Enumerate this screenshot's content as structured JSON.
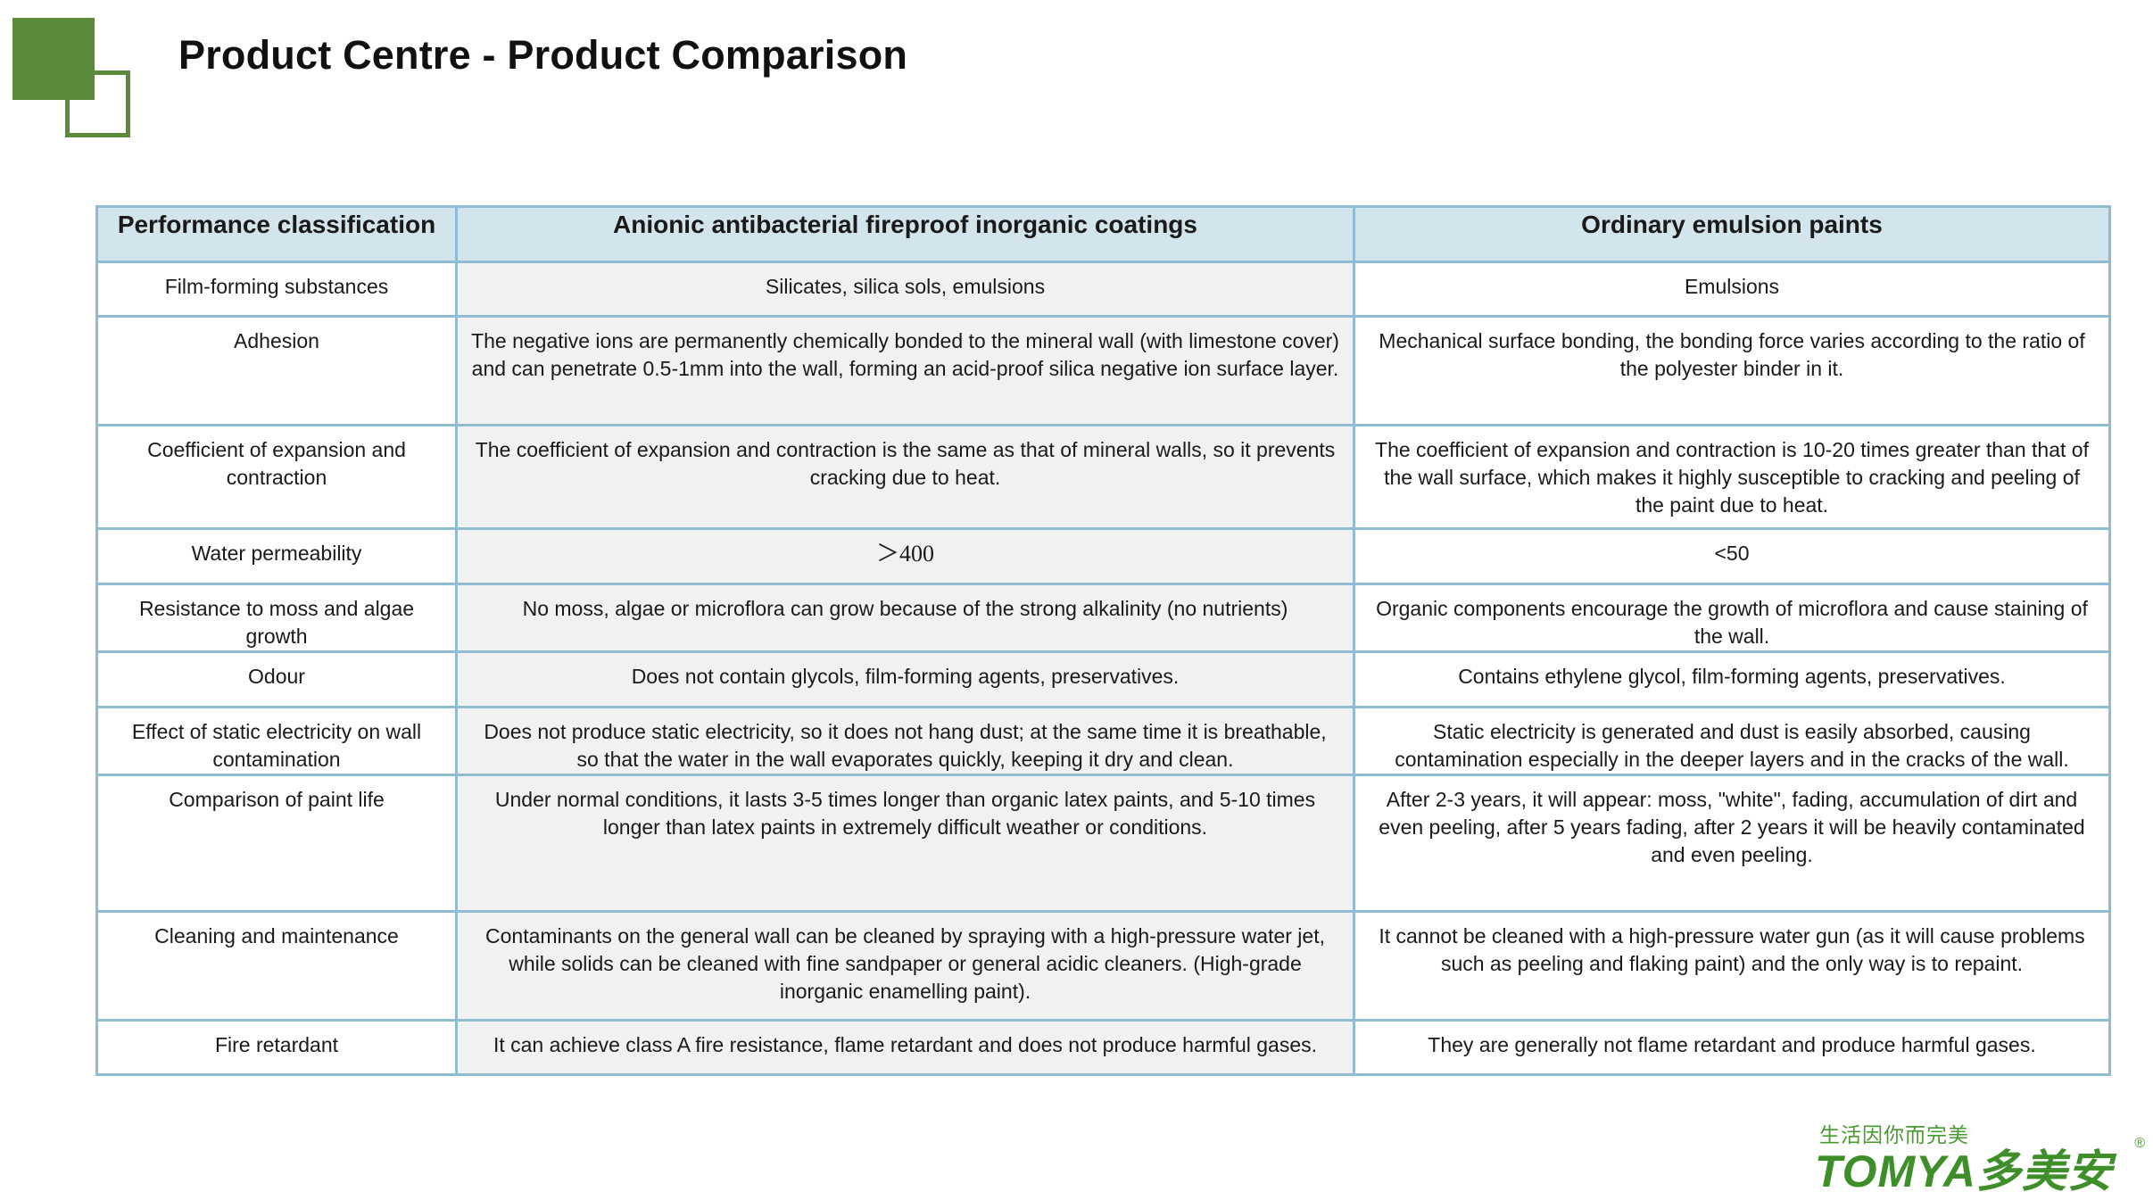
{
  "header": {
    "title": "Product Centre - Product Comparison"
  },
  "table": {
    "columns": [
      "Performance classification",
      "Anionic antibacterial fireproof inorganic coatings",
      "Ordinary emulsion paints"
    ],
    "rows": [
      {
        "label": "Film-forming substances",
        "inorganic": "Silicates, silica sols, emulsions",
        "emulsion": "Emulsions"
      },
      {
        "label": "Adhesion",
        "inorganic": "The negative ions are permanently chemically bonded to the mineral wall (with limestone cover) and can penetrate 0.5-1mm into the wall, forming an acid-proof silica negative ion surface layer.",
        "emulsion": "Mechanical surface bonding, the bonding force varies according to the ratio of the polyester binder in it."
      },
      {
        "label": "Coefficient of expansion and contraction",
        "inorganic": "The coefficient of expansion and contraction is the same as that of mineral walls, so it prevents cracking due to heat.",
        "emulsion": "The coefficient of expansion and contraction is 10-20 times greater than that of the wall surface, which makes it highly susceptible to cracking and peeling of the paint due to heat."
      },
      {
        "label": "Water permeability",
        "inorganic": "＞400",
        "emulsion": "<50"
      },
      {
        "label": "Resistance to moss and algae growth",
        "inorganic": "No moss, algae or microflora can grow because of the strong alkalinity (no nutrients)",
        "emulsion": "Organic components encourage the growth of microflora and cause staining of the wall."
      },
      {
        "label": "Odour",
        "inorganic": "Does not contain glycols, film-forming agents, preservatives.",
        "emulsion": "Contains ethylene glycol, film-forming agents, preservatives."
      },
      {
        "label": "Effect of static electricity on wall contamination",
        "inorganic": "Does not produce static electricity, so it does not hang dust; at the same time it is breathable, so that the water in the wall evaporates quickly, keeping it dry and clean.",
        "emulsion": "Static electricity is generated and dust is easily absorbed, causing contamination especially in the deeper layers and in the cracks of the wall."
      },
      {
        "label": "Comparison of paint life",
        "inorganic": "Under normal conditions, it lasts 3-5 times longer than organic latex paints, and 5-10 times longer than latex paints in extremely difficult weather or conditions.",
        "emulsion": "After 2-3 years, it will appear: moss, \"white\", fading, accumulation of dirt and even peeling, after 5 years fading, after 2 years it will be heavily contaminated and even peeling."
      },
      {
        "label": "Cleaning and maintenance",
        "inorganic": "Contaminants on the general wall can be cleaned by spraying with a high-pressure water jet, while solids can be cleaned with fine sandpaper or general acidic cleaners. (High-grade inorganic enamelling paint).",
        "emulsion": "It cannot be cleaned with a high-pressure water gun (as it will cause problems such as peeling and flaking paint) and the only way is to repaint."
      },
      {
        "label": "Fire retardant",
        "inorganic": "It can achieve class A fire resistance, flame retardant and does not produce harmful gases.",
        "emulsion": "They are generally not flame retardant and produce harmful gases."
      }
    ]
  },
  "brand": {
    "slogan": "生活因你而完美",
    "name": "TOMYA多美安",
    "registered": "®"
  }
}
